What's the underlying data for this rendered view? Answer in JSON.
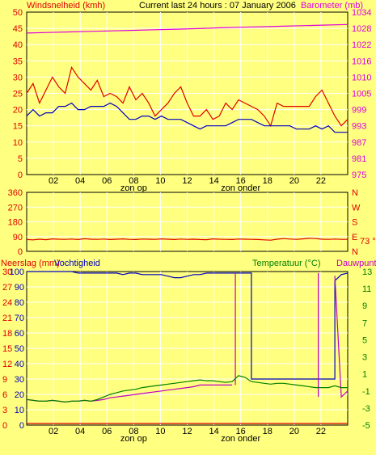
{
  "colors": {
    "background": "#FFFF80",
    "plot_bg": "#FFFF80",
    "grid": "#FFFFFF",
    "red": "#E00000",
    "blue": "#0000C0",
    "magenta": "#E000E0",
    "green": "#008000",
    "purple": "#C000C0",
    "black": "#000000"
  },
  "header": {
    "wind_label": "Windsnelheid (kmh)",
    "title": "Current last 24 hours : 07 January 2006",
    "baro_label": "Barometer (mb)"
  },
  "direction_panel": {
    "value_label": "73 °"
  },
  "bottom_header": {
    "rain_label": "Neerslag (mm)",
    "hum_label": "Vochtigheid",
    "temp_label": "Temperatuur (°C)",
    "dew_label": "Dauwpunt"
  },
  "x_axis": {
    "hour_ticks": [
      "02",
      "04",
      "06",
      "08",
      "10",
      "12",
      "14",
      "16",
      "18",
      "20",
      "22"
    ],
    "sunrise_label": "zon op",
    "sunset_label": "zon onder"
  },
  "chart_data": [
    {
      "type": "line",
      "title": "Current last 24 hours : 07 January 2006",
      "x_range_hours": [
        0,
        24
      ],
      "y_left_label": "Windsnelheid (kmh)",
      "y_left_ticks": [
        "0",
        "5",
        "10",
        "15",
        "20",
        "25",
        "30",
        "35",
        "40",
        "45",
        "50"
      ],
      "y_left_range": [
        0,
        50
      ],
      "y_right_label": "Barometer (mb)",
      "y_right_ticks": [
        "975",
        "981",
        "987",
        "993",
        "999",
        "1005",
        "1010",
        "1016",
        "1022",
        "1028",
        "1034"
      ],
      "y_right_range": [
        975,
        1034
      ],
      "series": [
        {
          "color": "#E00000",
          "axis": "left",
          "values": [
            25,
            28,
            22,
            26,
            30,
            27,
            25,
            33,
            30,
            28,
            26,
            29,
            24,
            25,
            24,
            22,
            27,
            23,
            25,
            22,
            18,
            20,
            22,
            25,
            27,
            22,
            18,
            18,
            20,
            17,
            18,
            22,
            20,
            23,
            22,
            21,
            20,
            18,
            15,
            22,
            21,
            21,
            21,
            21,
            21,
            24,
            26,
            22,
            18,
            15,
            17
          ]
        },
        {
          "color": "#0000C0",
          "axis": "left",
          "values": [
            18,
            20,
            18,
            19,
            19,
            21,
            21,
            22,
            20,
            20,
            21,
            21,
            21,
            22,
            21,
            19,
            17,
            17,
            18,
            18,
            17,
            18,
            17,
            17,
            17,
            16,
            15,
            14,
            15,
            15,
            15,
            15,
            16,
            17,
            17,
            17,
            16,
            15,
            15,
            15,
            15,
            15,
            14,
            14,
            14,
            15,
            14,
            15,
            13,
            13,
            13
          ]
        },
        {
          "color": "#E000E0",
          "axis": "right",
          "values": [
            1026.4,
            1026.6,
            1026.8,
            1027,
            1027.2,
            1027.4,
            1027.6,
            1027.8,
            1028,
            1028.3,
            1028.5,
            1028.7,
            1028.9,
            1029.1,
            1029.3,
            1029.5
          ]
        }
      ]
    },
    {
      "type": "line",
      "x_range_hours": [
        0,
        24
      ],
      "y_left_ticks": [
        "0",
        "90",
        "180",
        "270",
        "360"
      ],
      "y_left_range": [
        0,
        360
      ],
      "y_right_ticks": [
        "N",
        "E",
        "S",
        "W",
        "N"
      ],
      "series": [
        {
          "color": "#E00000",
          "values": [
            72,
            70,
            74,
            71,
            76,
            74,
            73,
            75,
            72,
            77,
            74,
            73,
            75,
            72,
            74,
            76,
            73,
            72,
            75,
            74,
            73,
            76,
            74,
            72,
            75,
            73,
            74,
            72,
            71,
            76,
            74,
            73,
            72,
            75,
            74,
            73,
            72,
            70,
            68,
            74,
            78,
            75,
            73,
            76,
            80,
            78,
            74,
            73,
            75,
            73,
            73
          ]
        }
      ]
    },
    {
      "type": "line",
      "x_range_hours": [
        0,
        24
      ],
      "y_left_ticks": [
        "0",
        "10",
        "20",
        "30",
        "40",
        "50",
        "60",
        "70",
        "80",
        "90",
        "100"
      ],
      "y_left_ticks_rain": [
        "0",
        "3",
        "6",
        "9",
        "12",
        "15",
        "18",
        "21",
        "24",
        "27",
        "30"
      ],
      "y_right_ticks": [
        "-5",
        "-3",
        "-1",
        "1",
        "3",
        "5",
        "7",
        "9",
        "11",
        "13"
      ],
      "y_left_range": [
        0,
        100
      ],
      "y_right_range": [
        -5,
        13
      ],
      "series": [
        {
          "color": "#0000C0",
          "axis": "left",
          "name": "Vochtigheid",
          "values": [
            100,
            100,
            100,
            100,
            100,
            100,
            100,
            100,
            99,
            99,
            99,
            99,
            99,
            99,
            99,
            98,
            99,
            99,
            98,
            98,
            98,
            98,
            97,
            96,
            96,
            97,
            98,
            98,
            99,
            99,
            99,
            99,
            99,
            99,
            99,
            30,
            30,
            30,
            30,
            30,
            30,
            30,
            30,
            30,
            30,
            30,
            30,
            30,
            94,
            98,
            99
          ]
        },
        {
          "color": "#008000",
          "axis": "right",
          "name": "Temperatuur (°C)",
          "values": [
            -2,
            -2.1,
            -2.2,
            -2.2,
            -2.1,
            -2.2,
            -2.3,
            -2.2,
            -2.2,
            -2.1,
            -2.2,
            -2,
            -1.7,
            -1.4,
            -1.2,
            -1.0,
            -0.9,
            -0.8,
            -0.6,
            -0.5,
            -0.4,
            -0.3,
            -0.2,
            -0.1,
            0,
            0.1,
            0.2,
            0.3,
            0.2,
            0.2,
            0.1,
            0.0,
            0.1,
            0.8,
            0.6,
            0.1,
            0.0,
            -0.1,
            -0.2,
            -0.1,
            -0.1,
            -0.2,
            -0.3,
            -0.4,
            -0.5,
            -0.6,
            -0.6,
            -0.6,
            -0.4,
            -0.6,
            -0.6
          ]
        },
        {
          "color": "#C000C0",
          "axis": "right",
          "name": "Dauwpunt",
          "values": [
            -2,
            -2.1,
            -2.2,
            -2.2,
            -2.1,
            -2.2,
            -2.3,
            -2.2,
            -2.2,
            -2.1,
            -2.2,
            -2.1,
            -2.0,
            -1.8,
            -1.7,
            -1.6,
            -1.5,
            -1.4,
            -1.3,
            -1.2,
            -1.1,
            -1.0,
            -0.9,
            -0.8,
            -0.7,
            -0.6,
            -0.5,
            -0.3,
            -0.3,
            -0.3,
            -0.3,
            -0.3,
            -0.3,
            null,
            null,
            null,
            null,
            null,
            null,
            null,
            null,
            null,
            null,
            null,
            null,
            null,
            null,
            null,
            12.5,
            -1.7,
            -1.0
          ]
        },
        {
          "color": "#E00000",
          "axis": "rain",
          "name": "Neerslag (mm)",
          "values": [
            0,
            0,
            0,
            0,
            0,
            0,
            0,
            0,
            0,
            0,
            0,
            0,
            0,
            0,
            0,
            0,
            0,
            0,
            0,
            0,
            0,
            0,
            0,
            0,
            0,
            0,
            0,
            0,
            0,
            0,
            0,
            0,
            0,
            0,
            0,
            0,
            0,
            0,
            0,
            0,
            0,
            0,
            0,
            0,
            0,
            0,
            0,
            0,
            0,
            0,
            0
          ]
        }
      ]
    }
  ]
}
